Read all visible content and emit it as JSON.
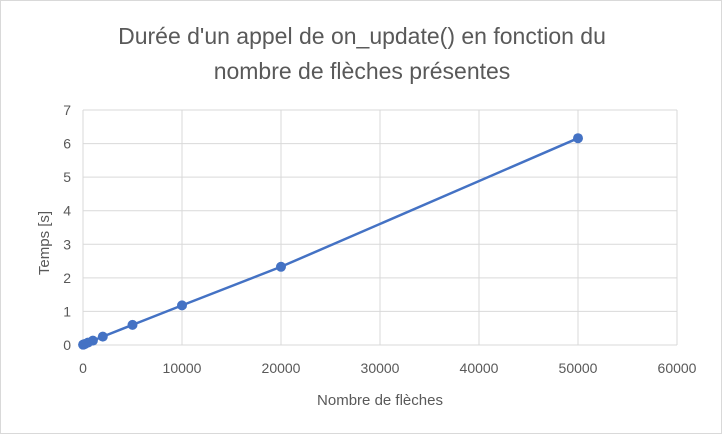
{
  "chart_data": {
    "type": "scatter",
    "title": "Durée d'un appel de on_update() en fonction du nombre de flèches présentes",
    "title_lines": [
      "Durée d'un appel de on_update() en fonction du",
      "nombre de flèches présentes"
    ],
    "xlabel": "Nombre de flèches",
    "ylabel": "Temps [s]",
    "xlim": [
      0,
      60000
    ],
    "ylim": [
      0,
      7
    ],
    "x_ticks": [
      0,
      10000,
      20000,
      30000,
      40000,
      50000,
      60000
    ],
    "y_ticks": [
      0,
      1,
      2,
      3,
      4,
      5,
      6,
      7
    ],
    "grid": true,
    "legend": "none",
    "series": [
      {
        "x": [
          10,
          100,
          200,
          500,
          1000,
          2000,
          5000,
          10000,
          20000,
          50000
        ],
        "y": [
          0.01,
          0.02,
          0.03,
          0.07,
          0.13,
          0.25,
          0.6,
          1.18,
          2.33,
          6.16
        ],
        "color": "#4472c4",
        "connected": true
      }
    ]
  }
}
